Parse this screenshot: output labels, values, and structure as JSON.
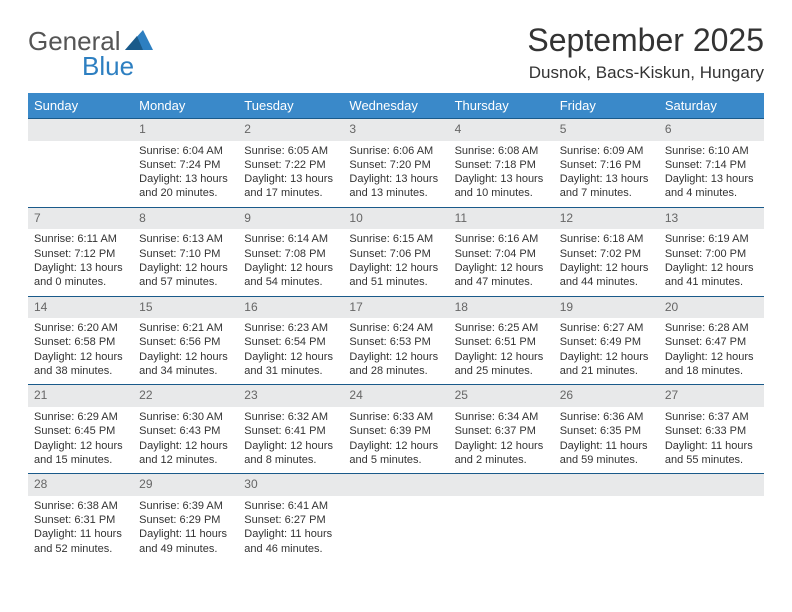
{
  "logo": {
    "word1": "General",
    "word2": "Blue"
  },
  "title": "September 2025",
  "subtitle": "Dusnok, Bacs-Kiskun, Hungary",
  "colors": {
    "header_bg": "#3a89c9",
    "header_text": "#ffffff",
    "daynum_bg": "#e8e9ea",
    "daynum_text": "#666666",
    "row_border": "#1a5a8a",
    "body_text": "#333333",
    "logo_gray": "#555555",
    "logo_blue": "#2d7fc1",
    "page_bg": "#ffffff"
  },
  "weekdays": [
    "Sunday",
    "Monday",
    "Tuesday",
    "Wednesday",
    "Thursday",
    "Friday",
    "Saturday"
  ],
  "weeks": [
    {
      "nums": [
        "",
        "1",
        "2",
        "3",
        "4",
        "5",
        "6"
      ],
      "cells": [
        null,
        {
          "sr": "Sunrise: 6:04 AM",
          "ss": "Sunset: 7:24 PM",
          "d1": "Daylight: 13 hours",
          "d2": "and 20 minutes."
        },
        {
          "sr": "Sunrise: 6:05 AM",
          "ss": "Sunset: 7:22 PM",
          "d1": "Daylight: 13 hours",
          "d2": "and 17 minutes."
        },
        {
          "sr": "Sunrise: 6:06 AM",
          "ss": "Sunset: 7:20 PM",
          "d1": "Daylight: 13 hours",
          "d2": "and 13 minutes."
        },
        {
          "sr": "Sunrise: 6:08 AM",
          "ss": "Sunset: 7:18 PM",
          "d1": "Daylight: 13 hours",
          "d2": "and 10 minutes."
        },
        {
          "sr": "Sunrise: 6:09 AM",
          "ss": "Sunset: 7:16 PM",
          "d1": "Daylight: 13 hours",
          "d2": "and 7 minutes."
        },
        {
          "sr": "Sunrise: 6:10 AM",
          "ss": "Sunset: 7:14 PM",
          "d1": "Daylight: 13 hours",
          "d2": "and 4 minutes."
        }
      ]
    },
    {
      "nums": [
        "7",
        "8",
        "9",
        "10",
        "11",
        "12",
        "13"
      ],
      "cells": [
        {
          "sr": "Sunrise: 6:11 AM",
          "ss": "Sunset: 7:12 PM",
          "d1": "Daylight: 13 hours",
          "d2": "and 0 minutes."
        },
        {
          "sr": "Sunrise: 6:13 AM",
          "ss": "Sunset: 7:10 PM",
          "d1": "Daylight: 12 hours",
          "d2": "and 57 minutes."
        },
        {
          "sr": "Sunrise: 6:14 AM",
          "ss": "Sunset: 7:08 PM",
          "d1": "Daylight: 12 hours",
          "d2": "and 54 minutes."
        },
        {
          "sr": "Sunrise: 6:15 AM",
          "ss": "Sunset: 7:06 PM",
          "d1": "Daylight: 12 hours",
          "d2": "and 51 minutes."
        },
        {
          "sr": "Sunrise: 6:16 AM",
          "ss": "Sunset: 7:04 PM",
          "d1": "Daylight: 12 hours",
          "d2": "and 47 minutes."
        },
        {
          "sr": "Sunrise: 6:18 AM",
          "ss": "Sunset: 7:02 PM",
          "d1": "Daylight: 12 hours",
          "d2": "and 44 minutes."
        },
        {
          "sr": "Sunrise: 6:19 AM",
          "ss": "Sunset: 7:00 PM",
          "d1": "Daylight: 12 hours",
          "d2": "and 41 minutes."
        }
      ]
    },
    {
      "nums": [
        "14",
        "15",
        "16",
        "17",
        "18",
        "19",
        "20"
      ],
      "cells": [
        {
          "sr": "Sunrise: 6:20 AM",
          "ss": "Sunset: 6:58 PM",
          "d1": "Daylight: 12 hours",
          "d2": "and 38 minutes."
        },
        {
          "sr": "Sunrise: 6:21 AM",
          "ss": "Sunset: 6:56 PM",
          "d1": "Daylight: 12 hours",
          "d2": "and 34 minutes."
        },
        {
          "sr": "Sunrise: 6:23 AM",
          "ss": "Sunset: 6:54 PM",
          "d1": "Daylight: 12 hours",
          "d2": "and 31 minutes."
        },
        {
          "sr": "Sunrise: 6:24 AM",
          "ss": "Sunset: 6:53 PM",
          "d1": "Daylight: 12 hours",
          "d2": "and 28 minutes."
        },
        {
          "sr": "Sunrise: 6:25 AM",
          "ss": "Sunset: 6:51 PM",
          "d1": "Daylight: 12 hours",
          "d2": "and 25 minutes."
        },
        {
          "sr": "Sunrise: 6:27 AM",
          "ss": "Sunset: 6:49 PM",
          "d1": "Daylight: 12 hours",
          "d2": "and 21 minutes."
        },
        {
          "sr": "Sunrise: 6:28 AM",
          "ss": "Sunset: 6:47 PM",
          "d1": "Daylight: 12 hours",
          "d2": "and 18 minutes."
        }
      ]
    },
    {
      "nums": [
        "21",
        "22",
        "23",
        "24",
        "25",
        "26",
        "27"
      ],
      "cells": [
        {
          "sr": "Sunrise: 6:29 AM",
          "ss": "Sunset: 6:45 PM",
          "d1": "Daylight: 12 hours",
          "d2": "and 15 minutes."
        },
        {
          "sr": "Sunrise: 6:30 AM",
          "ss": "Sunset: 6:43 PM",
          "d1": "Daylight: 12 hours",
          "d2": "and 12 minutes."
        },
        {
          "sr": "Sunrise: 6:32 AM",
          "ss": "Sunset: 6:41 PM",
          "d1": "Daylight: 12 hours",
          "d2": "and 8 minutes."
        },
        {
          "sr": "Sunrise: 6:33 AM",
          "ss": "Sunset: 6:39 PM",
          "d1": "Daylight: 12 hours",
          "d2": "and 5 minutes."
        },
        {
          "sr": "Sunrise: 6:34 AM",
          "ss": "Sunset: 6:37 PM",
          "d1": "Daylight: 12 hours",
          "d2": "and 2 minutes."
        },
        {
          "sr": "Sunrise: 6:36 AM",
          "ss": "Sunset: 6:35 PM",
          "d1": "Daylight: 11 hours",
          "d2": "and 59 minutes."
        },
        {
          "sr": "Sunrise: 6:37 AM",
          "ss": "Sunset: 6:33 PM",
          "d1": "Daylight: 11 hours",
          "d2": "and 55 minutes."
        }
      ]
    },
    {
      "nums": [
        "28",
        "29",
        "30",
        "",
        "",
        "",
        ""
      ],
      "cells": [
        {
          "sr": "Sunrise: 6:38 AM",
          "ss": "Sunset: 6:31 PM",
          "d1": "Daylight: 11 hours",
          "d2": "and 52 minutes."
        },
        {
          "sr": "Sunrise: 6:39 AM",
          "ss": "Sunset: 6:29 PM",
          "d1": "Daylight: 11 hours",
          "d2": "and 49 minutes."
        },
        {
          "sr": "Sunrise: 6:41 AM",
          "ss": "Sunset: 6:27 PM",
          "d1": "Daylight: 11 hours",
          "d2": "and 46 minutes."
        },
        null,
        null,
        null,
        null
      ]
    }
  ]
}
